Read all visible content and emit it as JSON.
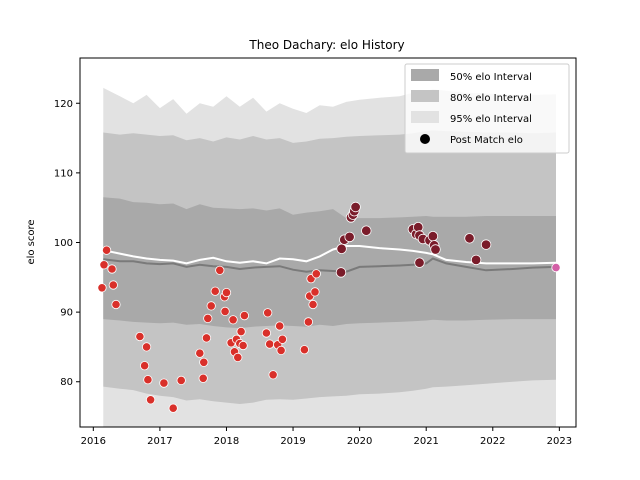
{
  "chart_data": {
    "type": "area",
    "title": "Theo Dachary: elo History",
    "xlabel": "",
    "ylabel": "elo score",
    "xlim": [
      2015.8,
      2023.25
    ],
    "ylim": [
      73.5,
      126.5
    ],
    "xticks": [
      2016,
      2017,
      2018,
      2019,
      2020,
      2021,
      2022,
      2023
    ],
    "yticks": [
      80,
      90,
      100,
      110,
      120
    ],
    "grid": false,
    "legend_placement": "upper right",
    "legend": {
      "band50": "50% elo Interval",
      "band80": "80% elo Interval",
      "band95": "95% elo Interval",
      "points": "Post Match elo"
    },
    "colors": {
      "band50": "#a9a9a9",
      "band80": "#c4c4c4",
      "band95": "#e2e2e2",
      "median_line": "#7a7a7a",
      "mean_line": "#ffffff",
      "early_points": "#d9302a",
      "late_points": "#7a1c2a",
      "final_point": "#d35fa6"
    },
    "bands": {
      "x": [
        2016.15,
        2016.4,
        2016.6,
        2016.8,
        2017.0,
        2017.2,
        2017.4,
        2017.6,
        2017.8,
        2018.0,
        2018.2,
        2018.4,
        2018.6,
        2018.8,
        2019.0,
        2019.2,
        2019.4,
        2019.6,
        2019.8,
        2020.0,
        2020.3,
        2020.6,
        2020.8,
        2021.0,
        2021.1,
        2021.3,
        2021.6,
        2021.9,
        2022.3,
        2022.6,
        2022.95
      ],
      "p95_upper": [
        122.2,
        121.0,
        120.0,
        121.2,
        119.3,
        120.6,
        118.5,
        120.0,
        119.5,
        121.0,
        119.5,
        120.8,
        118.8,
        120.0,
        119.2,
        118.6,
        119.7,
        119.5,
        120.2,
        120.5,
        120.8,
        121.0,
        121.5,
        121.8,
        122.0,
        121.8,
        121.5,
        121.4,
        121.2,
        121.2,
        121.3
      ],
      "p80_upper": [
        115.8,
        115.5,
        115.7,
        115.5,
        115.3,
        115.4,
        114.7,
        115.0,
        114.5,
        115.1,
        114.8,
        115.3,
        114.8,
        115.0,
        114.3,
        114.5,
        114.9,
        115.0,
        115.2,
        115.3,
        115.4,
        115.5,
        115.7,
        116.0,
        116.1,
        116.0,
        115.9,
        115.8,
        115.8,
        115.7,
        115.8
      ],
      "p50_upper": [
        106.5,
        106.3,
        105.8,
        105.7,
        105.5,
        105.6,
        104.8,
        105.5,
        105.0,
        104.9,
        104.8,
        104.9,
        104.6,
        104.9,
        104.0,
        104.3,
        104.5,
        104.8,
        103.5,
        103.5,
        103.5,
        103.6,
        103.7,
        103.8,
        103.7,
        103.7,
        103.7,
        103.8,
        103.8,
        103.8,
        103.8
      ],
      "median": [
        97.6,
        97.3,
        97.3,
        97.0,
        96.9,
        97.0,
        96.5,
        96.8,
        96.6,
        96.5,
        96.2,
        96.4,
        96.5,
        96.6,
        96.1,
        95.8,
        96.0,
        95.9,
        95.8,
        96.5,
        96.6,
        96.7,
        96.8,
        97.0,
        97.7,
        97.0,
        96.5,
        96.0,
        96.2,
        96.4,
        96.5
      ],
      "p50_lower": [
        89.0,
        88.8,
        88.6,
        88.5,
        88.4,
        88.5,
        88.2,
        88.3,
        88.0,
        87.8,
        87.7,
        87.9,
        88.0,
        88.1,
        88.0,
        87.9,
        88.2,
        88.0,
        88.3,
        88.4,
        88.5,
        88.6,
        88.7,
        88.8,
        88.9,
        88.8,
        88.8,
        88.9,
        89.0,
        89.0,
        89.0
      ],
      "p80_lower": [
        79.3,
        79.0,
        78.8,
        78.3,
        78.0,
        77.8,
        77.3,
        77.5,
        77.2,
        77.0,
        76.8,
        77.0,
        77.4,
        77.5,
        77.4,
        77.6,
        77.8,
        77.9,
        78.0,
        78.2,
        78.3,
        78.5,
        78.7,
        79.0,
        79.2,
        79.3,
        79.5,
        79.7,
        80.0,
        80.2,
        80.3
      ],
      "p95_lower": [
        73.5,
        73.5,
        73.5,
        73.5,
        73.5,
        73.5,
        73.5,
        73.5,
        73.5,
        73.5,
        73.5,
        73.5,
        73.5,
        73.5,
        73.5,
        73.5,
        73.5,
        73.5,
        73.5,
        73.5,
        73.5,
        73.5,
        73.5,
        73.5,
        73.5,
        73.5,
        73.5,
        73.5,
        73.5,
        73.5,
        73.5
      ]
    },
    "mean_line": {
      "x": [
        2016.15,
        2016.4,
        2016.6,
        2016.8,
        2017.0,
        2017.2,
        2017.4,
        2017.6,
        2017.8,
        2018.0,
        2018.2,
        2018.4,
        2018.6,
        2018.8,
        2019.0,
        2019.2,
        2019.4,
        2019.6,
        2019.8,
        2020.0,
        2020.3,
        2020.6,
        2020.8,
        2021.0,
        2021.1,
        2021.3,
        2021.6,
        2021.9,
        2022.3,
        2022.6,
        2022.95
      ],
      "y": [
        98.9,
        98.4,
        98.0,
        97.7,
        97.5,
        97.4,
        97.0,
        97.5,
        97.8,
        97.3,
        97.1,
        97.3,
        97.0,
        97.7,
        97.6,
        97.3,
        98.0,
        99.0,
        99.5,
        99.5,
        99.2,
        99.0,
        98.8,
        98.5,
        98.3,
        97.5,
        97.2,
        97.0,
        97.0,
        97.0,
        97.1
      ]
    },
    "points": [
      {
        "x": 2016.13,
        "y": 93.5
      },
      {
        "x": 2016.16,
        "y": 96.8
      },
      {
        "x": 2016.2,
        "y": 98.9
      },
      {
        "x": 2016.28,
        "y": 96.2
      },
      {
        "x": 2016.3,
        "y": 93.9
      },
      {
        "x": 2016.34,
        "y": 91.1
      },
      {
        "x": 2016.7,
        "y": 86.5
      },
      {
        "x": 2016.77,
        "y": 82.3
      },
      {
        "x": 2016.8,
        "y": 85.0
      },
      {
        "x": 2016.82,
        "y": 80.3
      },
      {
        "x": 2016.86,
        "y": 77.4
      },
      {
        "x": 2017.06,
        "y": 79.8
      },
      {
        "x": 2017.2,
        "y": 76.2
      },
      {
        "x": 2017.32,
        "y": 80.2
      },
      {
        "x": 2017.6,
        "y": 84.1
      },
      {
        "x": 2017.65,
        "y": 80.5
      },
      {
        "x": 2017.66,
        "y": 82.8
      },
      {
        "x": 2017.7,
        "y": 86.3
      },
      {
        "x": 2017.72,
        "y": 89.1
      },
      {
        "x": 2017.77,
        "y": 90.9
      },
      {
        "x": 2017.83,
        "y": 93.0
      },
      {
        "x": 2017.9,
        "y": 96.0
      },
      {
        "x": 2017.97,
        "y": 92.2
      },
      {
        "x": 2017.98,
        "y": 90.1
      },
      {
        "x": 2018.0,
        "y": 92.8
      },
      {
        "x": 2018.07,
        "y": 85.6
      },
      {
        "x": 2018.1,
        "y": 88.9
      },
      {
        "x": 2018.12,
        "y": 84.3
      },
      {
        "x": 2018.15,
        "y": 86.1
      },
      {
        "x": 2018.17,
        "y": 83.5
      },
      {
        "x": 2018.2,
        "y": 85.5
      },
      {
        "x": 2018.22,
        "y": 87.2
      },
      {
        "x": 2018.25,
        "y": 85.2
      },
      {
        "x": 2018.27,
        "y": 89.5
      },
      {
        "x": 2018.6,
        "y": 87.0
      },
      {
        "x": 2018.62,
        "y": 89.9
      },
      {
        "x": 2018.65,
        "y": 85.4
      },
      {
        "x": 2018.7,
        "y": 81.0
      },
      {
        "x": 2018.77,
        "y": 85.3
      },
      {
        "x": 2018.8,
        "y": 88.0
      },
      {
        "x": 2018.82,
        "y": 84.5
      },
      {
        "x": 2018.84,
        "y": 86.1
      },
      {
        "x": 2019.17,
        "y": 84.6
      },
      {
        "x": 2019.23,
        "y": 88.6
      },
      {
        "x": 2019.25,
        "y": 92.3
      },
      {
        "x": 2019.27,
        "y": 94.8
      },
      {
        "x": 2019.3,
        "y": 91.1
      },
      {
        "x": 2019.33,
        "y": 92.9
      },
      {
        "x": 2019.35,
        "y": 95.5
      },
      {
        "x": 2019.72,
        "y": 95.7
      },
      {
        "x": 2019.73,
        "y": 99.1
      },
      {
        "x": 2019.77,
        "y": 100.4
      },
      {
        "x": 2019.85,
        "y": 100.8
      },
      {
        "x": 2019.87,
        "y": 103.6
      },
      {
        "x": 2019.9,
        "y": 104.0
      },
      {
        "x": 2019.92,
        "y": 104.5
      },
      {
        "x": 2019.94,
        "y": 105.1
      },
      {
        "x": 2020.1,
        "y": 101.7
      },
      {
        "x": 2020.8,
        "y": 101.9
      },
      {
        "x": 2020.85,
        "y": 101.2
      },
      {
        "x": 2020.88,
        "y": 102.2
      },
      {
        "x": 2020.9,
        "y": 101.0
      },
      {
        "x": 2020.9,
        "y": 97.1
      },
      {
        "x": 2020.95,
        "y": 100.5
      },
      {
        "x": 2021.05,
        "y": 100.3
      },
      {
        "x": 2021.1,
        "y": 100.9
      },
      {
        "x": 2021.12,
        "y": 99.6
      },
      {
        "x": 2021.14,
        "y": 99.0
      },
      {
        "x": 2021.65,
        "y": 100.6
      },
      {
        "x": 2021.75,
        "y": 97.5
      },
      {
        "x": 2021.9,
        "y": 99.7
      },
      {
        "x": 2022.95,
        "y": 96.4
      }
    ]
  }
}
